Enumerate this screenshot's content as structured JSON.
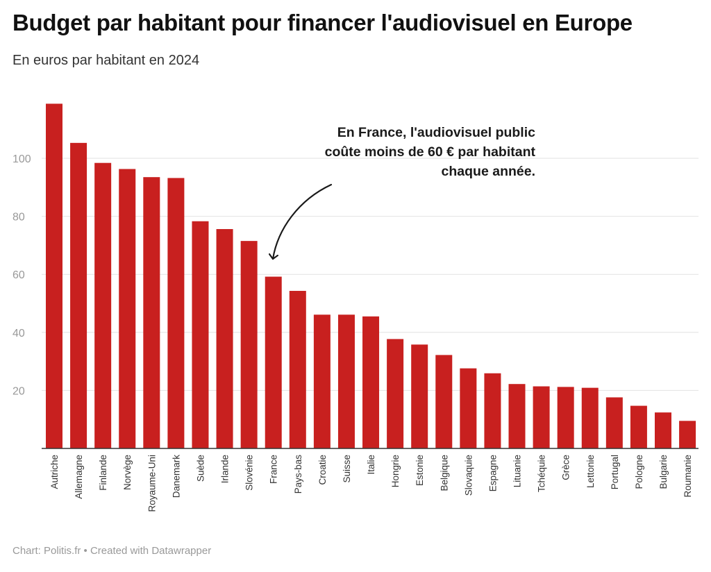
{
  "header": {
    "title": "Budget par habitant pour financer l'audiovisuel en Europe",
    "subtitle": "En euros par habitant en 2024"
  },
  "footer": {
    "source": "Chart: Politis.fr • Created with Datawrapper"
  },
  "colors": {
    "bar": "#c8201f",
    "grid": "#e2e2e2",
    "axis": "#333333"
  },
  "chart_data": {
    "type": "bar",
    "title": "Budget par habitant pour financer l'audiovisuel en Europe",
    "subtitle": "En euros par habitant en 2024",
    "xlabel": "",
    "ylabel": "",
    "ylim": [
      0,
      120
    ],
    "yticks": [
      20,
      40,
      60,
      80,
      100
    ],
    "grid": true,
    "categories": [
      "Autriche",
      "Allemagne",
      "Finlande",
      "Norvège",
      "Royaume-Uni",
      "Danemark",
      "Suède",
      "Irlande",
      "Slovénie",
      "France",
      "Pays-bas",
      "Croatie",
      "Suisse",
      "Italie",
      "Hongrie",
      "Estonie",
      "Belgique",
      "Slovaquie",
      "Espagne",
      "Lituanie",
      "Tchéquie",
      "Grèce",
      "Lettonie",
      "Portugal",
      "Pologne",
      "Bulgarie",
      "Roumanie"
    ],
    "values": [
      118.8,
      105.3,
      98.4,
      96.3,
      93.5,
      93.2,
      78.3,
      75.6,
      71.5,
      59.2,
      54.3,
      46.1,
      46.1,
      45.5,
      37.7,
      35.8,
      32.2,
      27.6,
      25.9,
      22.2,
      21.4,
      21.2,
      20.9,
      17.6,
      14.7,
      12.4,
      9.5
    ],
    "annotation": {
      "lines": [
        "En France, l'audiovisuel public",
        "coûte moins de 60 € par habitant",
        "chaque année."
      ],
      "target": "France"
    }
  }
}
